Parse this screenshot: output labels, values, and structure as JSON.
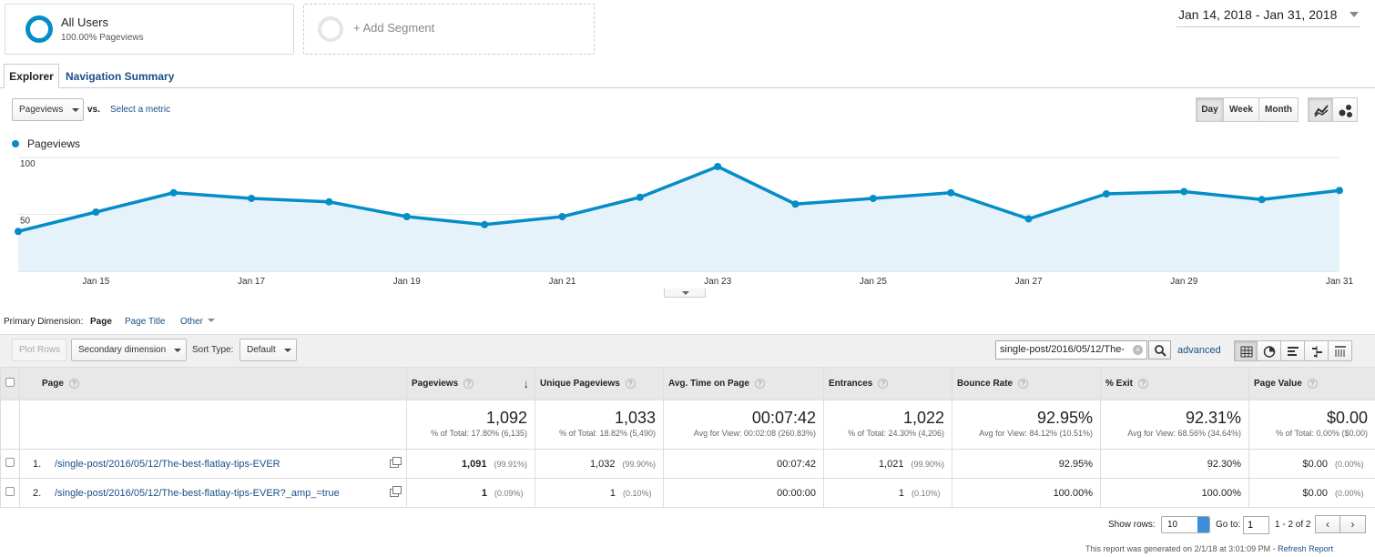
{
  "segment": {
    "name": "All Users",
    "subtitle": "100.00% Pageviews",
    "add_label": "+ Add Segment"
  },
  "date_range": "Jan 14, 2018 - Jan 31, 2018",
  "tabs": {
    "explorer": "Explorer",
    "navigation": "Navigation Summary"
  },
  "metric": {
    "selected": "Pageviews",
    "vs": "vs.",
    "select_metric": "Select a metric"
  },
  "granularity": {
    "day": "Day",
    "week": "Week",
    "month": "Month",
    "active": "Day"
  },
  "chart_data": {
    "type": "area",
    "series": [
      {
        "name": "Pageviews",
        "color": "#058dc7",
        "x": [
          "Jan 14",
          "Jan 15",
          "Jan 16",
          "Jan 17",
          "Jan 18",
          "Jan 19",
          "Jan 20",
          "Jan 21",
          "Jan 22",
          "Jan 23",
          "Jan 24",
          "Jan 25",
          "Jan 26",
          "Jan 27",
          "Jan 28",
          "Jan 29",
          "Jan 30",
          "Jan 31"
        ],
        "values": [
          35,
          52,
          69,
          64,
          61,
          48,
          41,
          48,
          65,
          92,
          59,
          64,
          69,
          46,
          68,
          70,
          63,
          71
        ]
      }
    ],
    "x_tick_labels": [
      "Jan 15",
      "Jan 17",
      "Jan 19",
      "Jan 21",
      "Jan 23",
      "Jan 25",
      "Jan 27",
      "Jan 29",
      "Jan 31"
    ],
    "y_tick_labels": [
      "100",
      "50"
    ],
    "ylim": [
      0,
      100
    ],
    "grid": true
  },
  "primary_dimension": {
    "label": "Primary Dimension:",
    "page": "Page",
    "page_title": "Page Title",
    "other": "Other"
  },
  "toolbar": {
    "plot_rows": "Plot Rows",
    "secondary_dimension": "Secondary dimension",
    "sort_type_label": "Sort Type:",
    "sort_type": "Default",
    "search_value": "single-post/2016/05/12/The-",
    "advanced": "advanced"
  },
  "table": {
    "headers": {
      "page": "Page",
      "pageviews": "Pageviews",
      "unique_pageviews": "Unique Pageviews",
      "avg_time": "Avg. Time on Page",
      "entrances": "Entrances",
      "bounce_rate": "Bounce Rate",
      "exit": "% Exit",
      "page_value": "Page Value"
    },
    "totals": {
      "pageviews": "1,092",
      "pageviews_sub": "% of Total: 17.80% (6,135)",
      "unique_pageviews": "1,033",
      "unique_pageviews_sub": "% of Total: 18.82% (5,490)",
      "avg_time": "00:07:42",
      "avg_time_sub": "Avg for View: 00:02:08 (260.83%)",
      "entrances": "1,022",
      "entrances_sub": "% of Total: 24.30% (4,206)",
      "bounce_rate": "92.95%",
      "bounce_rate_sub": "Avg for View: 84.12% (10.51%)",
      "exit": "92.31%",
      "exit_sub": "Avg for View: 68.56% (34.64%)",
      "page_value": "$0.00",
      "page_value_sub": "% of Total: 0.00% ($0.00)"
    },
    "rows": [
      {
        "num": "1.",
        "page": "/single-post/2016/05/12/The-best-flatlay-tips-EVER",
        "pageviews": "1,091",
        "pageviews_pct": "(99.91%)",
        "unique_pageviews": "1,032",
        "unique_pageviews_pct": "(99.90%)",
        "avg_time": "00:07:42",
        "entrances": "1,021",
        "entrances_pct": "(99.90%)",
        "bounce_rate": "92.95%",
        "exit": "92.30%",
        "page_value": "$0.00",
        "page_value_pct": "(0.00%)"
      },
      {
        "num": "2.",
        "page": "/single-post/2016/05/12/The-best-flatlay-tips-EVER?_amp_=true",
        "pageviews": "1",
        "pageviews_pct": "(0.09%)",
        "unique_pageviews": "1",
        "unique_pageviews_pct": "(0.10%)",
        "avg_time": "00:00:00",
        "entrances": "1",
        "entrances_pct": "(0.10%)",
        "bounce_rate": "100.00%",
        "exit": "100.00%",
        "page_value": "$0.00",
        "page_value_pct": "(0.00%)"
      }
    ]
  },
  "footer": {
    "show_rows_label": "Show rows:",
    "show_rows": "10",
    "goto_label": "Go to:",
    "goto_value": "1",
    "range": "1 - 2 of 2",
    "generated": "This report was generated on 2/1/18 at 3:01:09 PM - ",
    "refresh": "Refresh Report"
  }
}
